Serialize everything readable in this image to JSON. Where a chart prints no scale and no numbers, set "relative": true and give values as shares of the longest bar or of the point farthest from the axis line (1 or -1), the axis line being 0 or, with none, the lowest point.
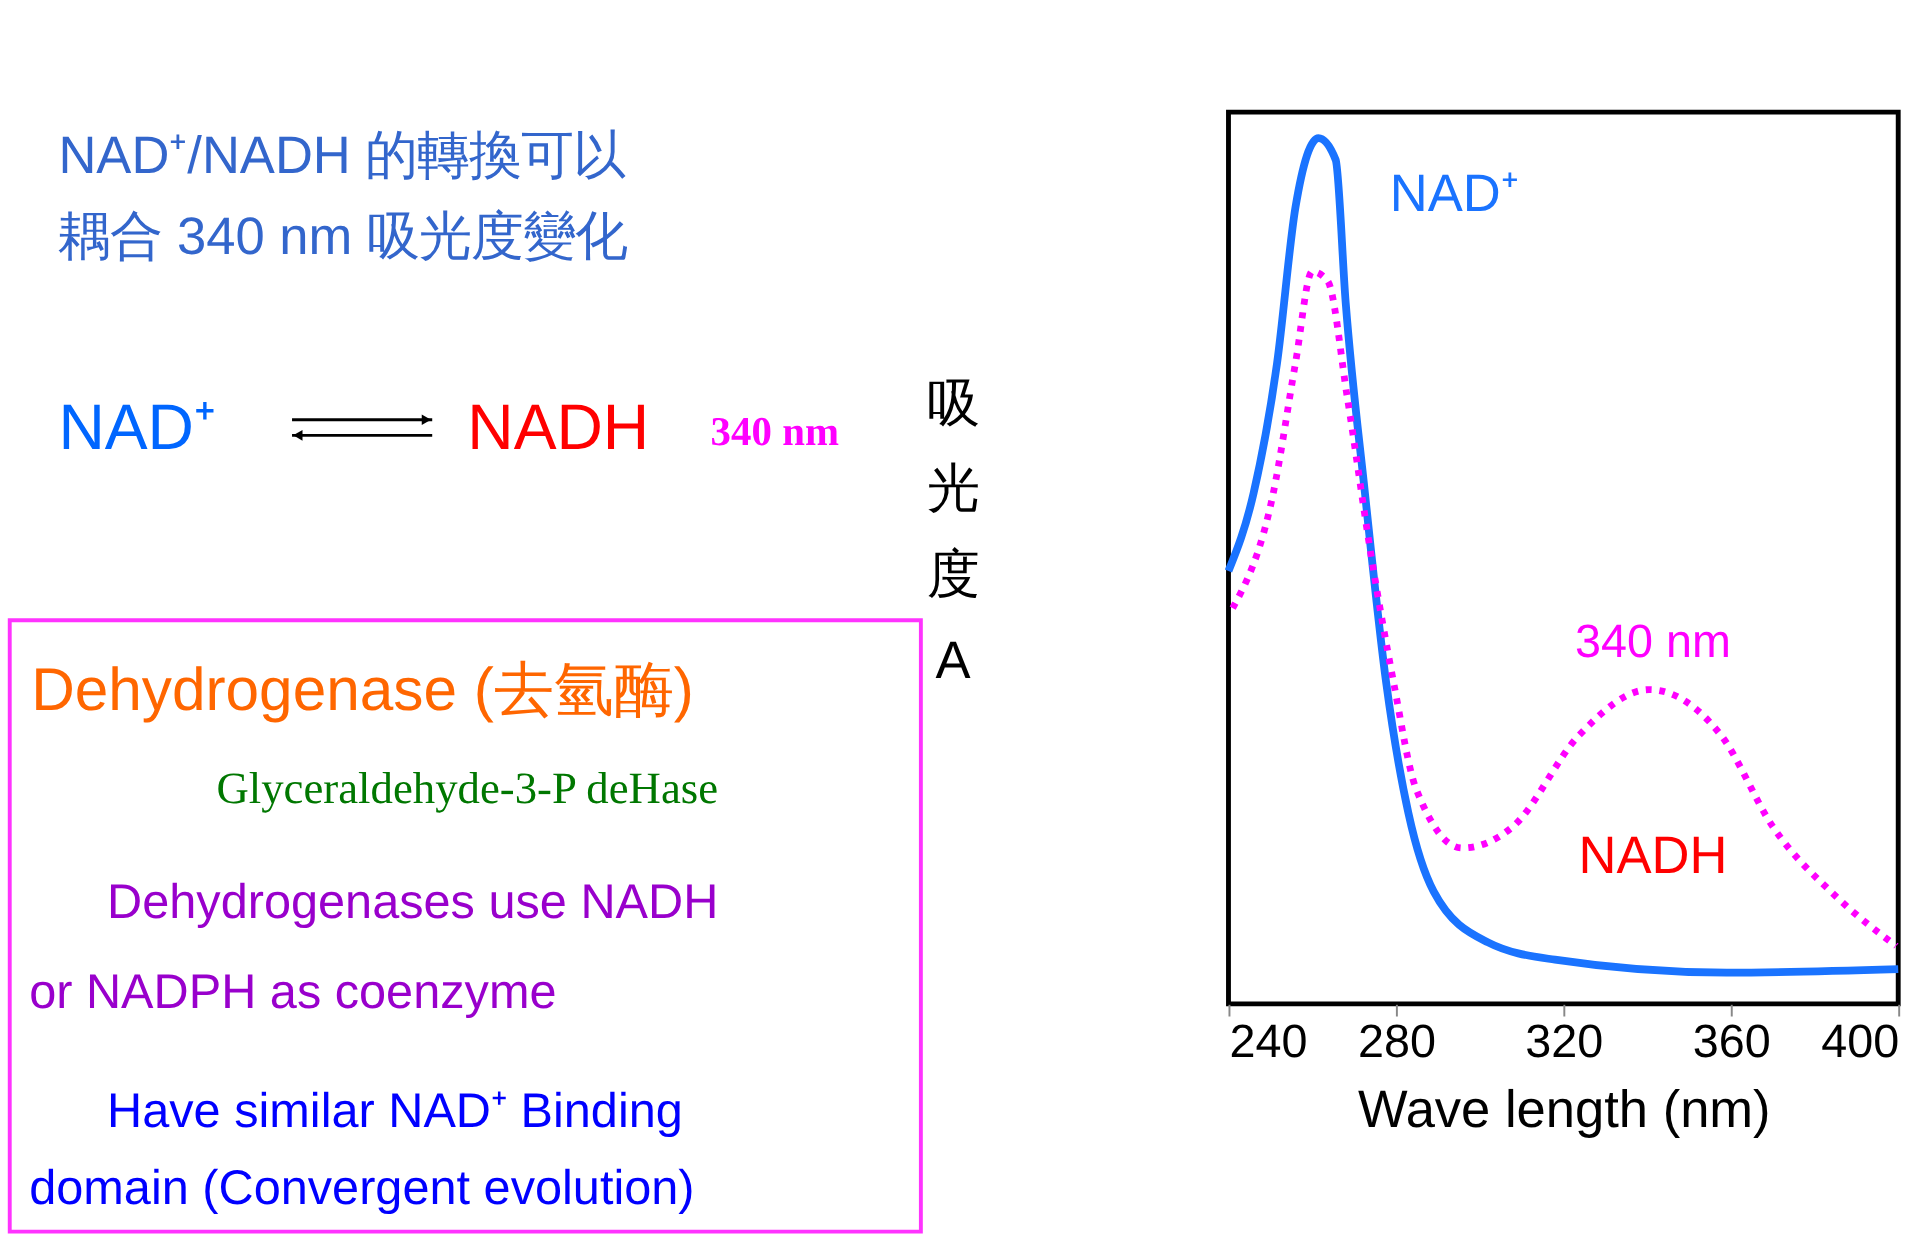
{
  "chart_data": {
    "type": "line",
    "xlabel": "Wave length (nm)",
    "ylabel": "吸光度 A",
    "relative": true,
    "xlim": [
      240,
      400
    ],
    "xticks": [
      240,
      280,
      320,
      360,
      400
    ],
    "grid": false,
    "marker": "none",
    "series": [
      {
        "name": "NAD⁺",
        "color": "#1a73ff",
        "line_style": "solid",
        "x": [
          240,
          246,
          251.6,
          256,
          261.5,
          265.6,
          268,
          272.6,
          277.7,
          283,
          289,
          302,
          318,
          359,
          400
        ],
        "values": [
          0.5,
          0.59,
          0.74,
          0.92,
          1.0,
          0.975,
          0.81,
          0.59,
          0.37,
          0.22,
          0.13,
          0.071,
          0.051,
          0.036,
          0.04
        ]
      },
      {
        "name": "NADH",
        "color": "#ff00ff",
        "line_style": "dotted",
        "x": [
          241,
          250.7,
          256,
          260,
          263.7,
          268.4,
          274,
          279.5,
          284.7,
          295.8,
          308,
          323.7,
          340.5,
          357.7,
          370,
          385.6,
          399.5
        ],
        "values": [
          0.457,
          0.59,
          0.74,
          0.846,
          0.835,
          0.7,
          0.52,
          0.37,
          0.25,
          0.18,
          0.205,
          0.31,
          0.363,
          0.31,
          0.205,
          0.122,
          0.067
        ]
      }
    ],
    "annotations": [
      "NAD⁺/NADH 的轉換可以",
      "耦合 340 nm 吸光度變化",
      "NAD⁺",
      "NADH",
      "340 nm",
      "Dehydrogenase (去氫酶)",
      "Glyceraldehyde-3-P deHase",
      "Dehydrogenases use NADH",
      "or NADPH as coenzyme",
      "Have similar NAD⁺ Binding",
      "domain (Convergent evolution)",
      "340 nm"
    ]
  }
}
